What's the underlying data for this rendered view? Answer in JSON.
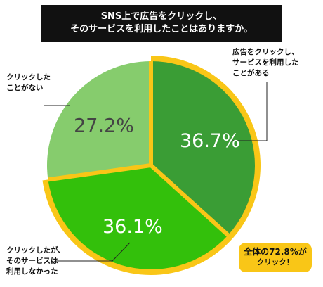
{
  "title": {
    "line1": "SNS上で広告をクリックし、",
    "line2": "そのサービスを利用したことはありますか。"
  },
  "colors": {
    "clicked_and_used": "#3a9d35",
    "clicked_not_used": "#33c00b",
    "never_clicked": "#86cc6d",
    "highlight_ring": "#f9c617",
    "divider": "#f9c617"
  },
  "chart_data": {
    "type": "pie",
    "title": "SNS上で広告をクリックし、そのサービスを利用したことはありますか。",
    "slices": [
      {
        "label": "広告をクリックし、サービスを利用したことがある",
        "value": 36.7,
        "display": "36.7%",
        "color": "#3a9d35"
      },
      {
        "label": "クリックしたが、そのサービスは利用しなかった",
        "value": 36.1,
        "display": "36.1%",
        "color": "#33c00b"
      },
      {
        "label": "クリックしたことがない",
        "value": 27.2,
        "display": "27.2%",
        "color": "#86cc6d"
      }
    ],
    "annotation": "全体の72.8%がクリック！"
  },
  "callouts": {
    "used": [
      "広告をクリックし、",
      "サービスを利用した",
      "ことがある"
    ],
    "not_used": [
      "クリックしたが、",
      "そのサービスは",
      "利用しなかった"
    ],
    "never": [
      "クリックした",
      "ことがない"
    ]
  },
  "badge": {
    "line1": "全体の72.8%が",
    "line2": "クリック！"
  }
}
